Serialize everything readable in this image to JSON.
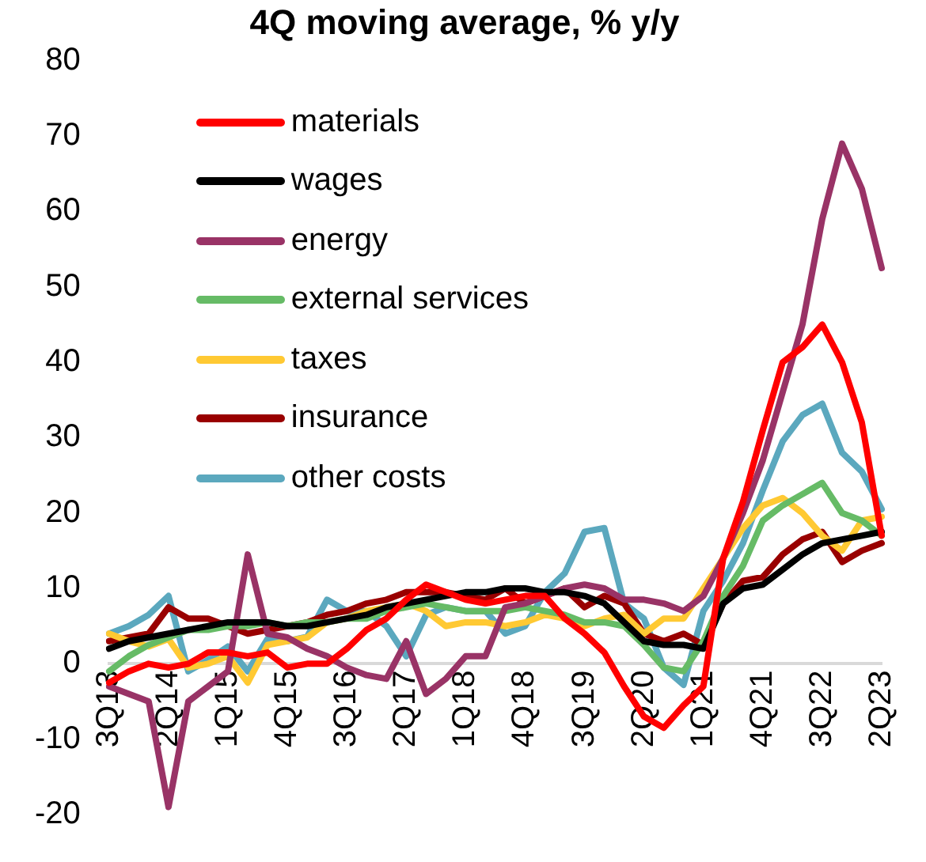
{
  "chart_data": {
    "type": "line",
    "title": "4Q moving average, % y/y",
    "categories": [
      "3Q13",
      null,
      null,
      "2Q14",
      null,
      null,
      "1Q15",
      null,
      null,
      "4Q15",
      null,
      null,
      "3Q16",
      null,
      null,
      "2Q17",
      null,
      null,
      "1Q18",
      null,
      null,
      "4Q18",
      null,
      null,
      "3Q19",
      null,
      null,
      "2Q20",
      null,
      null,
      "1Q21",
      null,
      null,
      "4Q21",
      null,
      null,
      "3Q22",
      null,
      null,
      "2Q23"
    ],
    "series": [
      {
        "name": "materials",
        "color": "#ff0000",
        "values": [
          -2.5,
          -1,
          0,
          -0.5,
          0,
          1.5,
          1.5,
          1,
          1.5,
          -0.5,
          0,
          0,
          2,
          4.5,
          6,
          8.5,
          10.5,
          9.5,
          8.5,
          8,
          8.5,
          9,
          9,
          6,
          4,
          1.5,
          -3,
          -7,
          -8.5,
          -5.5,
          -3,
          14,
          21.5,
          31,
          40,
          42,
          45,
          40,
          32,
          17
        ]
      },
      {
        "name": "wages",
        "color": "#000000",
        "values": [
          2,
          3,
          3.5,
          4,
          4.5,
          5,
          5.5,
          5.5,
          5.5,
          5,
          5,
          5.5,
          6,
          6.5,
          7.5,
          8,
          8.5,
          9,
          9.5,
          9.5,
          10,
          10,
          9.5,
          9.5,
          9,
          8,
          5.5,
          3,
          2.5,
          2.5,
          2,
          8,
          10,
          10.5,
          12.5,
          14.5,
          16,
          16.5,
          17,
          17.5
        ]
      },
      {
        "name": "energy",
        "color": "#993366",
        "values": [
          -3,
          -4,
          -5,
          -19,
          -5,
          -3,
          -1,
          14.5,
          4,
          3.5,
          2,
          1,
          -0.5,
          -1.5,
          -2,
          3,
          -4,
          -2,
          1,
          1,
          7.5,
          8,
          9,
          10,
          10.5,
          10,
          8.5,
          8.5,
          8,
          7,
          9,
          14,
          20,
          27,
          36,
          45,
          59,
          69,
          63,
          52.5
        ]
      },
      {
        "name": "external services",
        "color": "#66bb66",
        "values": [
          -1,
          1,
          2.5,
          3.5,
          4.5,
          4.5,
          5,
          5,
          5.5,
          5,
          5.5,
          5.5,
          6,
          6,
          7,
          7.5,
          8,
          7.5,
          7,
          7,
          7,
          7.5,
          7,
          6.5,
          5.5,
          5.5,
          5,
          2.5,
          -0.5,
          -1,
          3,
          9,
          13,
          19,
          21,
          22.5,
          24,
          20,
          19,
          17
        ]
      },
      {
        "name": "taxes",
        "color": "#ffc933",
        "values": [
          4,
          3,
          2.3,
          3.3,
          -0.5,
          0,
          1,
          -2.5,
          2.5,
          3,
          3.5,
          5.5,
          6,
          7,
          7.5,
          8,
          7,
          5,
          5.5,
          5.5,
          5,
          5.5,
          6.5,
          6,
          5,
          6,
          6.5,
          4,
          6,
          6,
          10,
          14,
          18,
          21,
          22,
          20,
          17,
          15,
          19,
          19.5
        ]
      },
      {
        "name": "insurance",
        "color": "#990000",
        "values": [
          3,
          3.5,
          4,
          7.5,
          6,
          6,
          5,
          4,
          4.5,
          5,
          5.5,
          6.5,
          7,
          8,
          8.5,
          9.5,
          9.5,
          9.5,
          9,
          8.5,
          10,
          8,
          9,
          10,
          7.5,
          9,
          8,
          4,
          3,
          4,
          2.5,
          8,
          11,
          11.5,
          14.5,
          16.5,
          17.5,
          13.5,
          15,
          16
        ]
      },
      {
        "name": "other costs",
        "color": "#5ba8be",
        "values": [
          4,
          5,
          6.5,
          9,
          -1,
          0.5,
          2.3,
          -1,
          3.3,
          3,
          3.6,
          8.5,
          7,
          7,
          5,
          1,
          6.5,
          7.5,
          7,
          7,
          4,
          5,
          9.5,
          12,
          17.5,
          18,
          8,
          6,
          -0.5,
          -2.8,
          7,
          11,
          16,
          23,
          29.5,
          33,
          34.5,
          28,
          25.5,
          20.5
        ]
      }
    ],
    "ylim": [
      -20,
      80
    ],
    "yticks": [
      -20,
      -10,
      0,
      10,
      20,
      30,
      40,
      50,
      60,
      70,
      80
    ],
    "legend": "top left"
  }
}
